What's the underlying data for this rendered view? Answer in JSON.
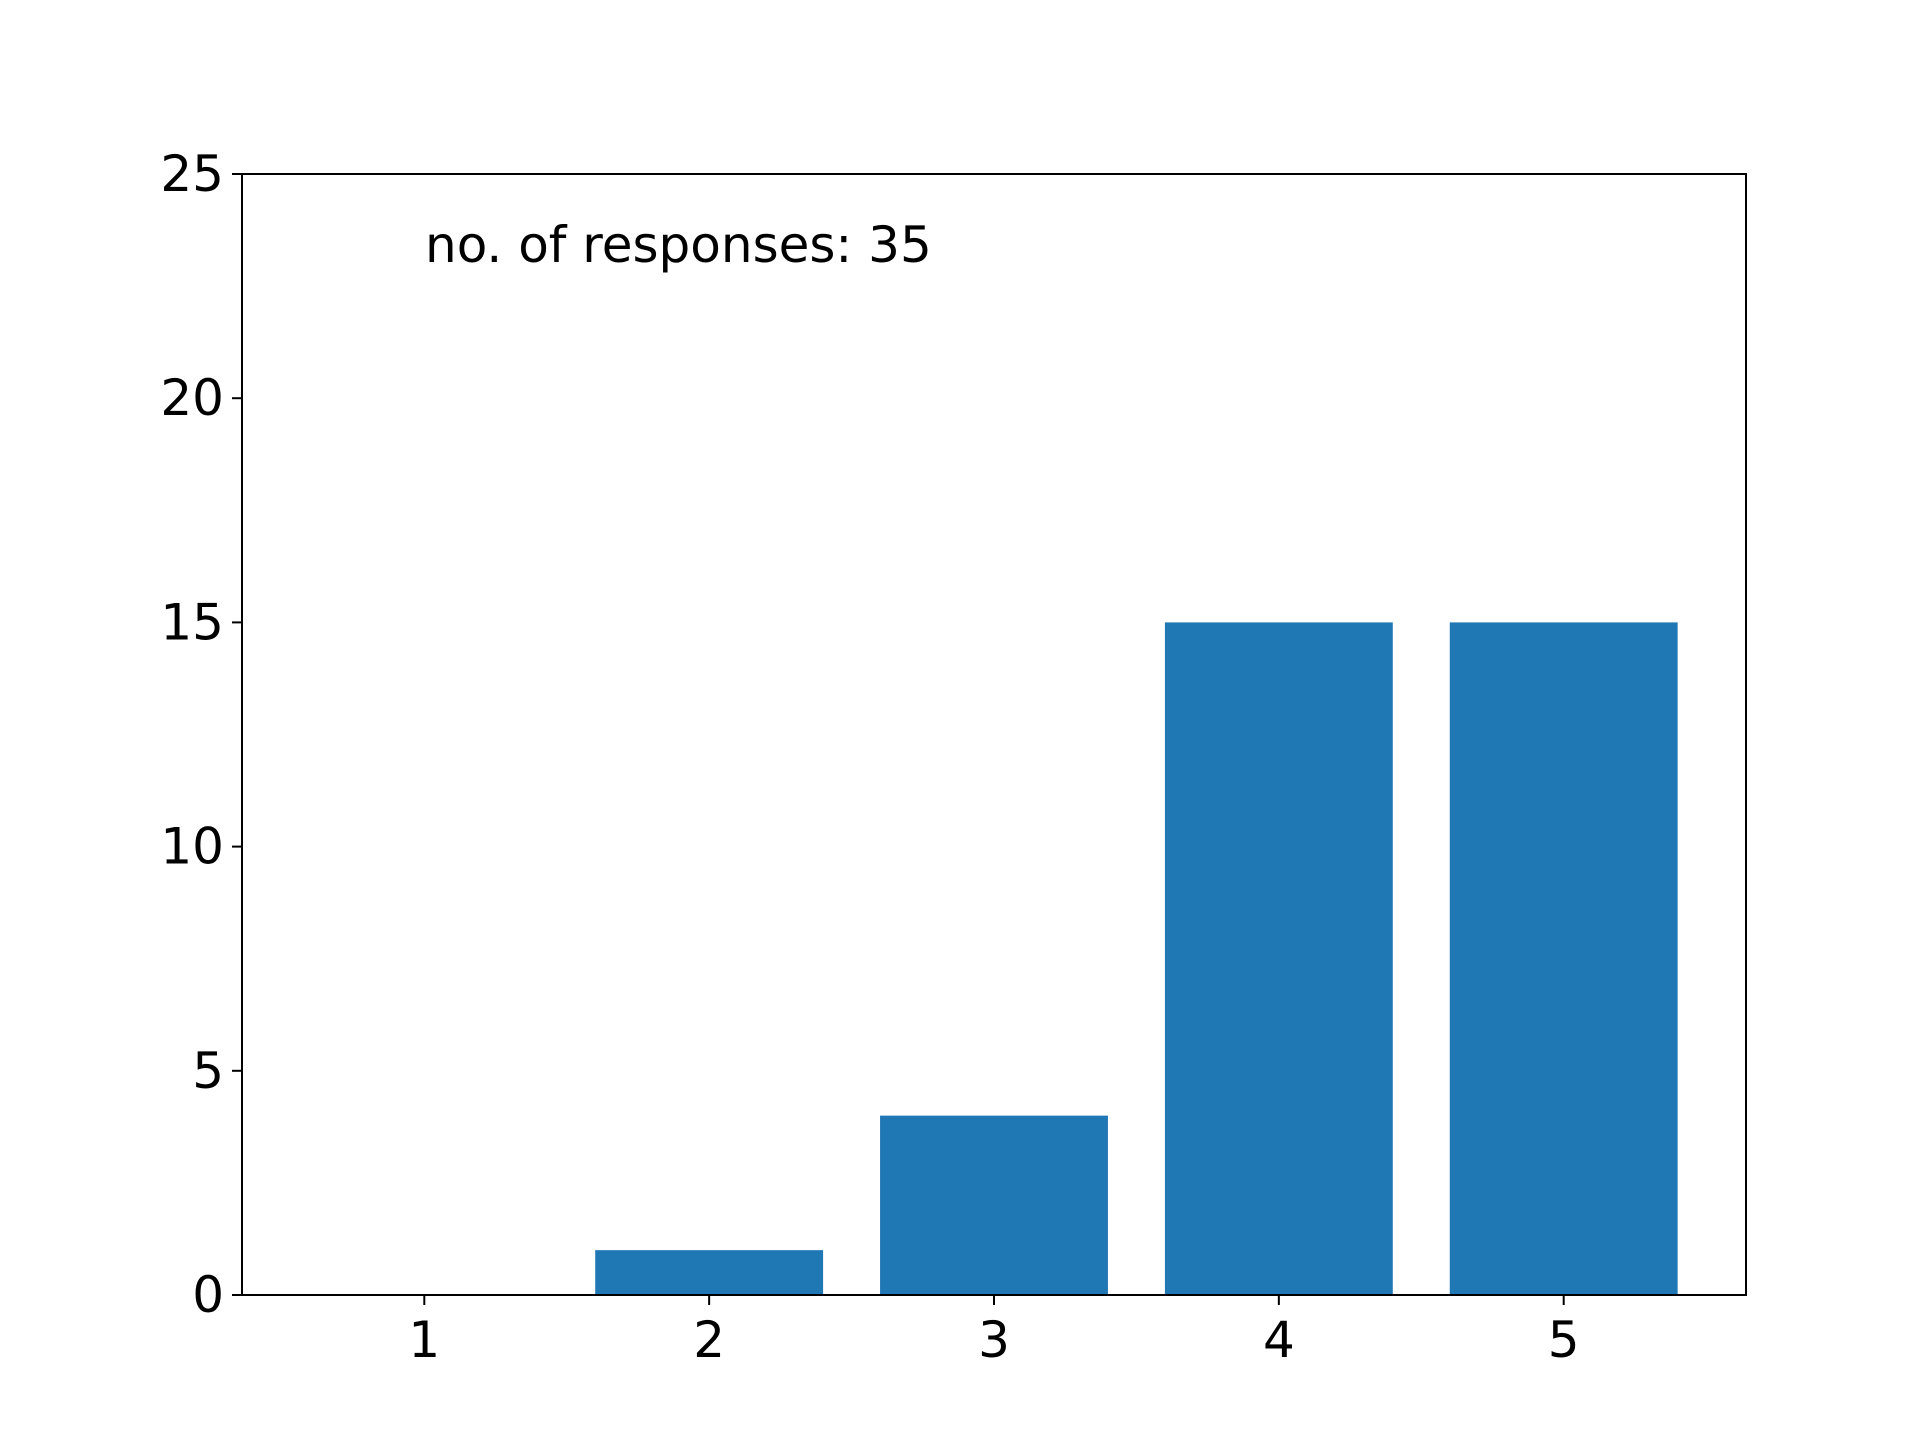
{
  "chart_data": {
    "type": "bar",
    "annotation": "no. of responses: 35",
    "x": [
      1,
      2,
      3,
      4,
      5
    ],
    "values": [
      0,
      1,
      4,
      15,
      15
    ],
    "color": "#1f77b4",
    "xlim": [
      0.36,
      5.64
    ],
    "xticks": [
      1,
      2,
      3,
      4,
      5
    ],
    "ylim": [
      0,
      25
    ],
    "yticks": [
      0,
      5,
      10,
      15,
      20,
      25
    ],
    "grid": false
  }
}
